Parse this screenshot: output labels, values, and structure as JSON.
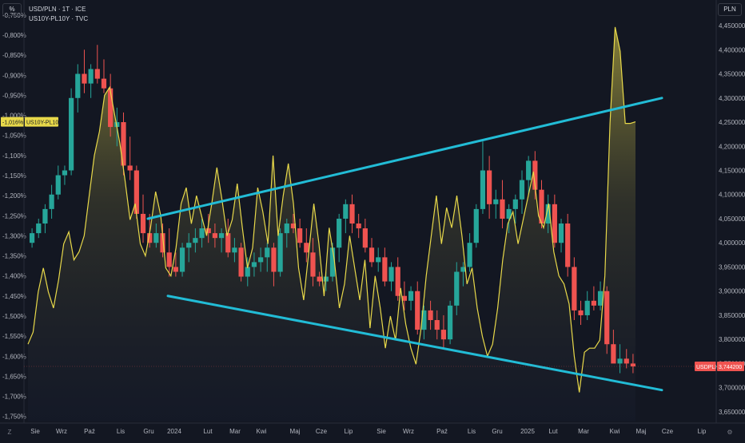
{
  "toolbar": {
    "left_unit_label": "%",
    "right_unit_label": "PLN",
    "bottom_left_label": "Z",
    "bottom_right_label": "⚙"
  },
  "legend": {
    "line1": "USD/PLN · 1T · ICE",
    "line2": "US10Y-PL10Y · TVC"
  },
  "colors": {
    "background": "#131722",
    "up": "#26a69a",
    "down": "#ef5350",
    "spread_line": "#e8d94a",
    "channel": "#22bcd6",
    "grid": "#1e222d"
  },
  "chart_data": {
    "type": "candlestick+line",
    "title": "USD/PLN · 1T · ICE",
    "series": [
      {
        "name": "USD/PLN",
        "axis": "right",
        "unit": "PLN",
        "price_label": "USDPLN",
        "last_value": "3,744200",
        "ohlc_weekly": [
          [
            4.0,
            4.03,
            3.99,
            4.02
          ],
          [
            4.02,
            4.05,
            4.01,
            4.04
          ],
          [
            4.04,
            4.08,
            4.02,
            4.07
          ],
          [
            4.07,
            4.12,
            4.05,
            4.1
          ],
          [
            4.1,
            4.16,
            4.09,
            4.14
          ],
          [
            4.14,
            4.16,
            4.12,
            4.15
          ],
          [
            4.15,
            4.32,
            4.14,
            4.3
          ],
          [
            4.3,
            4.37,
            4.27,
            4.35
          ],
          [
            4.35,
            4.4,
            4.31,
            4.33
          ],
          [
            4.33,
            4.37,
            4.3,
            4.36
          ],
          [
            4.36,
            4.41,
            4.33,
            4.34
          ],
          [
            4.34,
            4.38,
            4.31,
            4.32
          ],
          [
            4.32,
            4.35,
            4.22,
            4.24
          ],
          [
            4.24,
            4.28,
            4.2,
            4.25
          ],
          [
            4.25,
            4.27,
            4.14,
            4.16
          ],
          [
            4.16,
            4.22,
            4.13,
            4.15
          ],
          [
            4.15,
            4.16,
            4.05,
            4.06
          ],
          [
            4.06,
            4.1,
            4.0,
            4.02
          ],
          [
            4.02,
            4.06,
            3.99,
            4.0
          ],
          [
            4.0,
            4.04,
            3.99,
            4.02
          ],
          [
            4.02,
            4.04,
            3.97,
            3.98
          ],
          [
            3.98,
            4.03,
            3.93,
            3.95
          ],
          [
            3.95,
            3.98,
            3.93,
            3.94
          ],
          [
            3.94,
            4.0,
            3.93,
            3.99
          ],
          [
            3.99,
            4.02,
            3.96,
            4.0
          ],
          [
            4.0,
            4.03,
            3.98,
            4.01
          ],
          [
            4.01,
            4.05,
            3.99,
            4.03
          ],
          [
            4.03,
            4.06,
            4.0,
            4.02
          ],
          [
            4.02,
            4.04,
            3.99,
            4.01
          ],
          [
            4.01,
            4.03,
            3.98,
            4.02
          ],
          [
            4.02,
            4.05,
            3.97,
            3.98
          ],
          [
            3.98,
            4.01,
            3.96,
            3.99
          ],
          [
            3.99,
            4.0,
            3.92,
            3.93
          ],
          [
            3.93,
            3.97,
            3.91,
            3.95
          ],
          [
            3.95,
            3.98,
            3.93,
            3.96
          ],
          [
            3.96,
            3.99,
            3.94,
            3.97
          ],
          [
            3.97,
            4.0,
            3.94,
            3.99
          ],
          [
            3.99,
            4.0,
            3.91,
            3.94
          ],
          [
            3.94,
            4.03,
            3.93,
            4.02
          ],
          [
            4.02,
            4.05,
            3.99,
            4.04
          ],
          [
            4.04,
            4.06,
            4.02,
            4.03
          ],
          [
            4.03,
            4.05,
            3.99,
            4.0
          ],
          [
            4.0,
            4.03,
            3.96,
            3.98
          ],
          [
            3.98,
            4.01,
            3.91,
            3.93
          ],
          [
            3.93,
            3.94,
            3.91,
            3.92
          ],
          [
            3.92,
            3.94,
            3.9,
            3.93
          ],
          [
            3.93,
            4.0,
            3.92,
            3.99
          ],
          [
            3.99,
            4.06,
            3.96,
            4.05
          ],
          [
            4.05,
            4.09,
            4.02,
            4.08
          ],
          [
            4.08,
            4.1,
            4.02,
            4.04
          ],
          [
            4.04,
            4.06,
            4.01,
            4.03
          ],
          [
            4.03,
            4.05,
            3.98,
            3.99
          ],
          [
            3.99,
            4.01,
            3.95,
            3.96
          ],
          [
            3.96,
            3.99,
            3.94,
            3.97
          ],
          [
            3.97,
            3.99,
            3.91,
            3.92
          ],
          [
            3.92,
            3.96,
            3.9,
            3.95
          ],
          [
            3.95,
            3.97,
            3.88,
            3.89
          ],
          [
            3.89,
            3.92,
            3.86,
            3.88
          ],
          [
            3.88,
            3.91,
            3.86,
            3.9
          ],
          [
            3.9,
            3.92,
            3.81,
            3.82
          ],
          [
            3.82,
            3.87,
            3.8,
            3.86
          ],
          [
            3.86,
            3.88,
            3.82,
            3.84
          ],
          [
            3.84,
            3.86,
            3.8,
            3.82
          ],
          [
            3.82,
            3.85,
            3.78,
            3.8
          ],
          [
            3.8,
            3.88,
            3.79,
            3.87
          ],
          [
            3.87,
            3.96,
            3.85,
            3.94
          ],
          [
            3.94,
            3.96,
            3.91,
            3.95
          ],
          [
            3.95,
            4.02,
            3.94,
            4.0
          ],
          [
            4.0,
            4.08,
            3.99,
            4.07
          ],
          [
            4.07,
            4.21,
            4.06,
            4.15
          ],
          [
            4.15,
            4.18,
            4.05,
            4.08
          ],
          [
            4.08,
            4.11,
            4.05,
            4.09
          ],
          [
            4.09,
            4.13,
            4.03,
            4.05
          ],
          [
            4.05,
            4.08,
            4.02,
            4.07
          ],
          [
            4.07,
            4.1,
            4.04,
            4.09
          ],
          [
            4.09,
            4.15,
            4.06,
            4.13
          ],
          [
            4.13,
            4.18,
            4.1,
            4.17
          ],
          [
            4.17,
            4.19,
            4.09,
            4.11
          ],
          [
            4.11,
            4.13,
            4.03,
            4.04
          ],
          [
            4.04,
            4.1,
            4.02,
            4.08
          ],
          [
            4.08,
            4.1,
            3.99,
            4.0
          ],
          [
            4.0,
            4.05,
            3.98,
            4.04
          ],
          [
            4.04,
            4.06,
            3.93,
            3.95
          ],
          [
            3.95,
            3.97,
            3.84,
            3.86
          ],
          [
            3.86,
            3.88,
            3.83,
            3.85
          ],
          [
            3.85,
            3.9,
            3.84,
            3.88
          ],
          [
            3.88,
            3.91,
            3.86,
            3.87
          ],
          [
            3.87,
            3.92,
            3.86,
            3.9
          ],
          [
            3.9,
            3.91,
            3.77,
            3.79
          ],
          [
            3.79,
            3.82,
            3.76,
            3.75
          ],
          [
            3.75,
            3.79,
            3.73,
            3.76
          ],
          [
            3.76,
            3.78,
            3.74,
            3.75
          ],
          [
            3.75,
            3.77,
            3.73,
            3.744
          ]
        ]
      },
      {
        "name": "US10Y-PL10Y",
        "axis": "left",
        "unit": "%",
        "price_label": "US10Y-PL10Y",
        "last_value": "-1,016%",
        "values": [
          -1.57,
          -1.54,
          -1.44,
          -1.38,
          -1.44,
          -1.48,
          -1.41,
          -1.32,
          -1.29,
          -1.36,
          -1.34,
          -1.3,
          -1.2,
          -1.1,
          -1.04,
          -0.95,
          -0.93,
          -1.0,
          -1.07,
          -1.16,
          -1.26,
          -1.22,
          -1.32,
          -1.35,
          -1.28,
          -1.19,
          -1.25,
          -1.38,
          -1.4,
          -1.33,
          -1.22,
          -1.18,
          -1.27,
          -1.2,
          -1.25,
          -1.3,
          -1.22,
          -1.13,
          -1.21,
          -1.3,
          -1.26,
          -1.17,
          -1.28,
          -1.38,
          -1.33,
          -1.18,
          -1.24,
          -1.32,
          -1.1,
          -1.3,
          -1.2,
          -1.12,
          -1.22,
          -1.38,
          -1.46,
          -1.34,
          -1.22,
          -1.32,
          -1.45,
          -1.28,
          -1.36,
          -1.48,
          -1.42,
          -1.3,
          -1.38,
          -1.46,
          -1.36,
          -1.53,
          -1.4,
          -1.48,
          -1.58,
          -1.5,
          -1.56,
          -1.43,
          -1.52,
          -1.58,
          -1.62,
          -1.53,
          -1.4,
          -1.3,
          -1.2,
          -1.32,
          -1.23,
          -1.28,
          -1.2,
          -1.3,
          -1.42,
          -1.38,
          -1.48,
          -1.55,
          -1.6,
          -1.57,
          -1.48,
          -1.36,
          -1.27,
          -1.24,
          -1.32,
          -1.26,
          -1.2,
          -1.14,
          -1.25,
          -1.28,
          -1.22,
          -1.34,
          -1.4,
          -1.42,
          -1.47,
          -1.6,
          -1.69,
          -1.59,
          -1.58,
          -1.58,
          -1.56,
          -1.4,
          -1.02,
          -0.78,
          -0.84,
          -1.02,
          -1.02,
          -1.016
        ]
      }
    ],
    "trendlines": [
      {
        "name": "upper channel",
        "from": {
          "x": "Lis",
          "value": 4.05,
          "axis": "right"
        },
        "to": {
          "x": "Maj+",
          "value": 4.3,
          "axis": "right"
        }
      },
      {
        "name": "lower channel",
        "from": {
          "x": "Gru",
          "value": 3.89,
          "axis": "right"
        },
        "to": {
          "x": "Maj+",
          "value": 3.695,
          "axis": "right"
        }
      }
    ],
    "x_tick_labels": [
      "Sie",
      "Wrz",
      "Paź",
      "Lis",
      "Gru",
      "2024",
      "Lut",
      "Mar",
      "Kwi",
      "Maj",
      "Cze",
      "Lip",
      "Sie",
      "Wrz",
      "Paź",
      "Lis",
      "Gru",
      "2025",
      "Lut",
      "Mar",
      "Kwi",
      "Maj",
      "Cze",
      "Lip"
    ],
    "left_axis": {
      "unit": "%",
      "tick_labels": [
        "-0,750%",
        "-0,800%",
        "-0,850%",
        "-0,900%",
        "-0,950%",
        "-1,000%",
        "-1,050%",
        "-1,100%",
        "-1,150%",
        "-1,200%",
        "-1,250%",
        "-1,300%",
        "-1,350%",
        "-1,400%",
        "-1,450%",
        "-1,500%",
        "-1,550%",
        "-1,600%",
        "-1,650%",
        "-1,700%",
        "-1,750%"
      ],
      "ylim": [
        -1.7625,
        -0.7125
      ]
    },
    "right_axis": {
      "unit": "PLN",
      "tick_labels": [
        "4,450000",
        "4,400000",
        "4,350000",
        "4,300000",
        "4,250000",
        "4,200000",
        "4,150000",
        "4,100000",
        "4,050000",
        "4,000000",
        "3,950000",
        "3,900000",
        "3,850000",
        "3,800000",
        "3,750000",
        "3,700000",
        "3,650000"
      ],
      "ylim": [
        3.63,
        4.503
      ]
    },
    "grid": false
  }
}
